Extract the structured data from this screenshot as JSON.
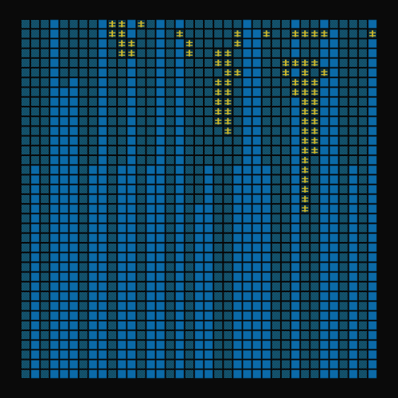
{
  "game": {
    "view": "tile-grid",
    "columns": 37,
    "rows": 37
  },
  "colors": {
    "background": "#0a0a0a",
    "solid_tile": "#0b6aa8",
    "solid_tile_edge": "#06466f",
    "dither_dark": "#0b3347",
    "dither_light": "#1b6d8c",
    "empty": "#070707",
    "glyph": "#c8b52c",
    "gap": "#173b4a"
  },
  "tile_types": [
    "solid",
    "dither",
    "glyph",
    "gap"
  ],
  "terrain": {
    "solid_top_rows_by_column": [
      0,
      0,
      3,
      0,
      7,
      6,
      3,
      0,
      0,
      2,
      0,
      0,
      0,
      0,
      0,
      1,
      0,
      0,
      19,
      0,
      0,
      0,
      0,
      0,
      1,
      0,
      2,
      0,
      0,
      0,
      0,
      0,
      1,
      0,
      6,
      0,
      0
    ],
    "dither_columns": [
      0,
      1,
      2,
      6,
      7,
      9,
      10,
      12,
      13,
      15,
      17,
      19,
      20,
      21,
      22,
      25,
      26,
      27,
      29,
      30,
      33,
      34,
      35
    ],
    "glyph_cells": [
      [
        0,
        9
      ],
      [
        0,
        10
      ],
      [
        0,
        12
      ],
      [
        1,
        9
      ],
      [
        1,
        10
      ],
      [
        2,
        10
      ],
      [
        2,
        11
      ],
      [
        3,
        10
      ],
      [
        3,
        11
      ],
      [
        1,
        16
      ],
      [
        1,
        22
      ],
      [
        1,
        25
      ],
      [
        1,
        28
      ],
      [
        1,
        29
      ],
      [
        1,
        30
      ],
      [
        1,
        31
      ],
      [
        1,
        36
      ],
      [
        2,
        17
      ],
      [
        2,
        22
      ],
      [
        3,
        17
      ],
      [
        3,
        20
      ],
      [
        3,
        21
      ],
      [
        4,
        20
      ],
      [
        4,
        21
      ],
      [
        5,
        21
      ],
      [
        5,
        22
      ],
      [
        6,
        20
      ],
      [
        6,
        21
      ],
      [
        7,
        20
      ],
      [
        7,
        21
      ],
      [
        8,
        20
      ],
      [
        8,
        21
      ],
      [
        9,
        20
      ],
      [
        9,
        21
      ],
      [
        10,
        20
      ],
      [
        10,
        21
      ],
      [
        11,
        21
      ],
      [
        4,
        27
      ],
      [
        4,
        28
      ],
      [
        4,
        29
      ],
      [
        4,
        30
      ],
      [
        5,
        27
      ],
      [
        5,
        29
      ],
      [
        5,
        31
      ],
      [
        6,
        28
      ],
      [
        6,
        29
      ],
      [
        6,
        30
      ],
      [
        7,
        28
      ],
      [
        7,
        29
      ],
      [
        7,
        30
      ],
      [
        8,
        29
      ],
      [
        8,
        30
      ],
      [
        9,
        29
      ],
      [
        9,
        30
      ],
      [
        10,
        29
      ],
      [
        10,
        30
      ],
      [
        11,
        29
      ],
      [
        11,
        30
      ],
      [
        12,
        29
      ],
      [
        12,
        30
      ],
      [
        13,
        29
      ],
      [
        13,
        30
      ],
      [
        14,
        29
      ],
      [
        15,
        29
      ],
      [
        16,
        29
      ],
      [
        17,
        29
      ],
      [
        18,
        29
      ],
      [
        19,
        29
      ]
    ]
  }
}
